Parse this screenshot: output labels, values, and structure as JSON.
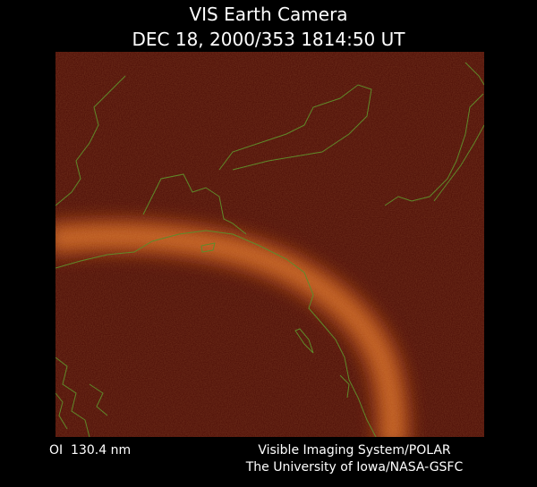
{
  "header": {
    "title": "VIS Earth Camera",
    "subtitle": "DEC 18, 2000/353 1814:50 UT"
  },
  "footer": {
    "wavelength": "OI  130.4 nm",
    "instrument": "Visible Imaging System/POLAR",
    "credit": "The University of Iowa/NASA-GSFC"
  }
}
